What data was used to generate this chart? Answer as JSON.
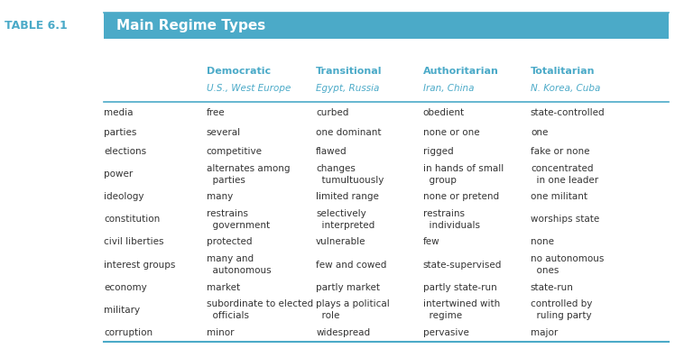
{
  "title_label": "TABLE 6.1",
  "title_text": "Main Regime Types",
  "title_bg_color": "#4BAAC8",
  "title_text_color": "#FFFFFF",
  "title_label_color": "#4BAAC8",
  "header_color": "#4BAAC8",
  "col_headers": [
    "Democratic",
    "Transitional",
    "Authoritarian",
    "Totalitarian"
  ],
  "col_subheaders": [
    "U.S., West Europe",
    "Egypt, Russia",
    "Iran, China",
    "N. Korea, Cuba"
  ],
  "row_labels": [
    "media",
    "parties",
    "elections",
    "power",
    "ideology",
    "constitution",
    "civil liberties",
    "interest groups",
    "economy",
    "military",
    "corruption"
  ],
  "col1_data": [
    "free",
    "several",
    "competitive",
    "alternates among\n  parties",
    "many",
    "restrains\n  government",
    "protected",
    "many and\n  autonomous",
    "market",
    "subordinate to elected\n  officials",
    "minor"
  ],
  "col2_data": [
    "curbed",
    "one dominant",
    "flawed",
    "changes\n  tumultuously",
    "limited range",
    "selectively\n  interpreted",
    "vulnerable",
    "few and cowed",
    "partly market",
    "plays a political\n  role",
    "widespread"
  ],
  "col3_data": [
    "obedient",
    "none or one",
    "rigged",
    "in hands of small\n  group",
    "none or pretend",
    "restrains\n  individuals",
    "few",
    "state-supervised",
    "partly state-run",
    "intertwined with\n  regime",
    "pervasive"
  ],
  "col4_data": [
    "state-controlled",
    "one",
    "fake or none",
    "concentrated\n  in one leader",
    "one militant",
    "worships state",
    "none",
    "no autonomous\n  ones",
    "state-run",
    "controlled by\n  ruling party",
    "major"
  ],
  "row_label_color": "#333333",
  "data_color": "#333333",
  "bg_color": "#FFFFFF",
  "line_color": "#4BAAC8"
}
